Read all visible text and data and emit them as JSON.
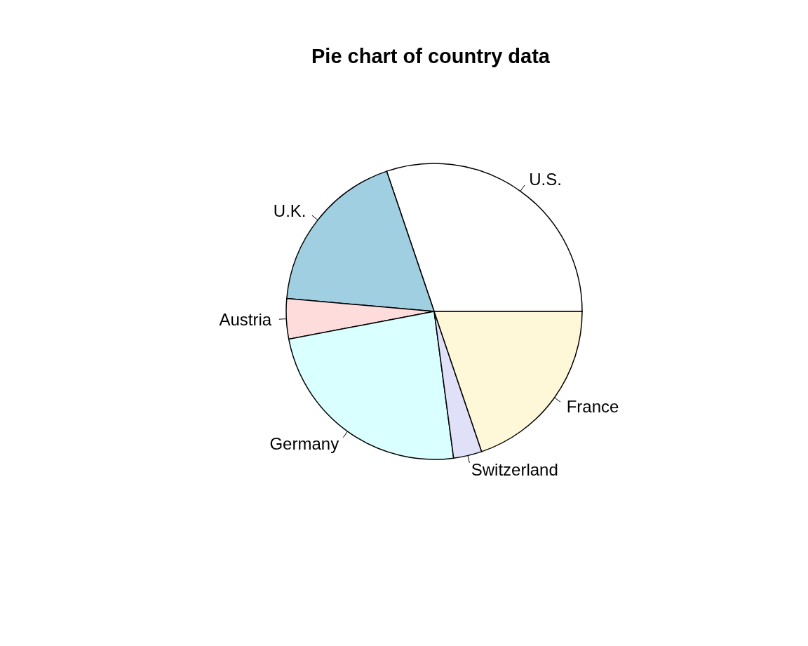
{
  "chart_data": {
    "type": "pie",
    "title": "Pie chart of country data",
    "categories": [
      "U.S.",
      "U.K.",
      "Austria",
      "Germany",
      "Switzerland",
      "France"
    ],
    "values": [
      30.2,
      18.4,
      4.4,
      24.1,
      3.1,
      19.8
    ],
    "colors": [
      "#ffffff",
      "#9fcfe0",
      "#ffdcdc",
      "#d9ffff",
      "#e0e0f8",
      "#fff8d8"
    ],
    "legend": false
  }
}
